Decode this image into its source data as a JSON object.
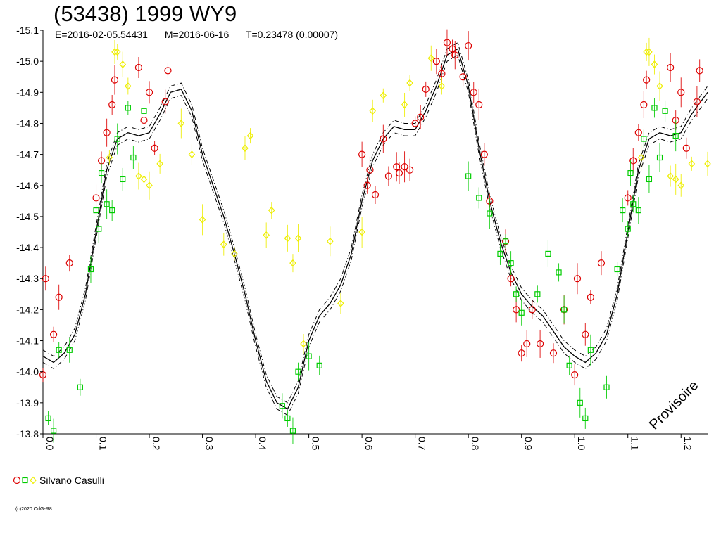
{
  "header": {
    "title": "(53438) 1999 WY9",
    "epoch": "E=2016-02-05.54431",
    "mid": "M=2016-06-16",
    "period": "T=0.23478 (0.00007)"
  },
  "legend": {
    "observer": "Silvano Casulli"
  },
  "watermark": "Provisoire",
  "copyright": "(c)2020 OdG-R8",
  "colors": {
    "red": "#dd0000",
    "green": "#00cc00",
    "yellow": "#eeee00",
    "curve": "#000000"
  },
  "chart_data": {
    "type": "scatter",
    "xlim": [
      0.0,
      1.25
    ],
    "ylim": [
      -15.1,
      -13.8
    ],
    "y_inverted": true,
    "x_tick_labels": [
      "0.0",
      "0.1",
      "0.2",
      "0.3",
      "0.4",
      "0.5",
      "0.6",
      "0.7",
      "0.8",
      "0.9",
      "1.0",
      "1.1",
      "1.2"
    ],
    "y_tick_labels": [
      "-15.1",
      "-15.0",
      "-14.9",
      "-14.8",
      "-14.7",
      "-14.6",
      "-14.5",
      "-14.4",
      "-14.3",
      "-14.2",
      "-14.1",
      "-14.0",
      "-13.9",
      "-13.8"
    ],
    "fit_curve": {
      "x": [
        0.0,
        0.02,
        0.04,
        0.06,
        0.08,
        0.1,
        0.12,
        0.14,
        0.16,
        0.18,
        0.2,
        0.22,
        0.24,
        0.26,
        0.28,
        0.3,
        0.32,
        0.34,
        0.36,
        0.38,
        0.4,
        0.42,
        0.44,
        0.46,
        0.48,
        0.5,
        0.52,
        0.54,
        0.56,
        0.58,
        0.6,
        0.62,
        0.64,
        0.66,
        0.68,
        0.7,
        0.72,
        0.74,
        0.76,
        0.78,
        0.8,
        0.82,
        0.84,
        0.86,
        0.88,
        0.9,
        0.92,
        0.94,
        0.96,
        0.98,
        1.0,
        1.02,
        1.04,
        1.06,
        1.08,
        1.1,
        1.12,
        1.14,
        1.16,
        1.18,
        1.2,
        1.22,
        1.25
      ],
      "y": [
        -14.05,
        -14.03,
        -14.06,
        -14.12,
        -14.25,
        -14.45,
        -14.65,
        -14.75,
        -14.77,
        -14.76,
        -14.77,
        -14.83,
        -14.9,
        -14.91,
        -14.84,
        -14.7,
        -14.6,
        -14.5,
        -14.38,
        -14.25,
        -14.1,
        -13.97,
        -13.9,
        -13.88,
        -13.95,
        -14.1,
        -14.18,
        -14.22,
        -14.28,
        -14.38,
        -14.55,
        -14.68,
        -14.75,
        -14.79,
        -14.78,
        -14.78,
        -14.84,
        -14.92,
        -15.02,
        -15.04,
        -14.92,
        -14.72,
        -14.55,
        -14.42,
        -14.32,
        -14.25,
        -14.21,
        -14.18,
        -14.13,
        -14.08,
        -14.05,
        -14.03,
        -14.06,
        -14.12,
        -14.25,
        -14.45,
        -14.65,
        -14.75,
        -14.77,
        -14.76,
        -14.77,
        -14.83,
        -14.9
      ],
      "band": 0.02
    },
    "series": [
      {
        "marker": "circle",
        "color": "red",
        "x": [
          0.0,
          0.005,
          0.02,
          0.03,
          0.05,
          0.1,
          0.11,
          0.12,
          0.13,
          0.135,
          0.18,
          0.19,
          0.2,
          0.21,
          0.23,
          0.235,
          0.6,
          0.61,
          0.615,
          0.625,
          0.64,
          0.65,
          0.665,
          0.67,
          0.68,
          0.69,
          0.7,
          0.71,
          0.72,
          0.74,
          0.75,
          0.76,
          0.77,
          0.775,
          0.79,
          0.8,
          0.81,
          0.82,
          0.83,
          0.84,
          0.87,
          0.88,
          0.89,
          0.9,
          0.91,
          0.92,
          0.935,
          0.96,
          0.98,
          1.0,
          1.005,
          1.02,
          1.03,
          1.05,
          1.1,
          1.11,
          1.12,
          1.13,
          1.135,
          1.18,
          1.19,
          1.2,
          1.21,
          1.23,
          1.235
        ],
        "y": [
          -13.99,
          -14.3,
          -14.12,
          -14.24,
          -14.35,
          -14.56,
          -14.68,
          -14.77,
          -14.86,
          -14.94,
          -14.98,
          -14.81,
          -14.9,
          -14.72,
          -14.87,
          -14.97,
          -14.7,
          -14.6,
          -14.65,
          -14.57,
          -14.75,
          -14.63,
          -14.66,
          -14.64,
          -14.66,
          -14.65,
          -14.8,
          -14.82,
          -14.91,
          -15.0,
          -14.96,
          -15.06,
          -15.04,
          -15.02,
          -14.95,
          -15.05,
          -14.9,
          -14.86,
          -14.7,
          -14.55,
          -14.42,
          -14.3,
          -14.2,
          -14.06,
          -14.09,
          -14.2,
          -14.09,
          -14.06,
          -14.2,
          -13.99,
          -14.3,
          -14.12,
          -14.24,
          -14.35,
          -14.56,
          -14.68,
          -14.77,
          -14.86,
          -14.94,
          -14.98,
          -14.81,
          -14.9,
          -14.72,
          -14.87,
          -14.97
        ]
      },
      {
        "marker": "square",
        "color": "green",
        "x": [
          0.01,
          0.02,
          0.03,
          0.05,
          0.07,
          0.09,
          0.1,
          0.105,
          0.11,
          0.12,
          0.13,
          0.14,
          0.15,
          0.16,
          0.17,
          0.19,
          0.45,
          0.46,
          0.47,
          0.48,
          0.5,
          0.52,
          0.8,
          0.82,
          0.84,
          0.86,
          0.87,
          0.88,
          0.89,
          0.9,
          0.93,
          0.95,
          0.97,
          0.98,
          0.99,
          1.01,
          1.02,
          1.03,
          1.06,
          1.08,
          1.09,
          1.1,
          1.105,
          1.11,
          1.12,
          1.13,
          1.14,
          1.15,
          1.16,
          1.17,
          1.19
        ],
        "y": [
          -13.85,
          -13.81,
          -14.07,
          -14.07,
          -13.95,
          -14.33,
          -14.52,
          -14.46,
          -14.64,
          -14.54,
          -14.52,
          -14.75,
          -14.62,
          -14.85,
          -14.69,
          -14.84,
          -13.89,
          -13.85,
          -13.81,
          -14.0,
          -14.05,
          -14.02,
          -14.63,
          -14.56,
          -14.51,
          -14.38,
          -14.42,
          -14.35,
          -14.25,
          -14.19,
          -14.25,
          -14.38,
          -14.32,
          -14.2,
          -14.02,
          -13.9,
          -13.85,
          -14.07,
          -13.95,
          -14.33,
          -14.52,
          -14.46,
          -14.64,
          -14.54,
          -14.52,
          -14.75,
          -14.62,
          -14.85,
          -14.69,
          -14.84,
          -14.76
        ]
      },
      {
        "marker": "diamond",
        "color": "yellow",
        "x": [
          0.125,
          0.135,
          0.14,
          0.15,
          0.16,
          0.18,
          0.19,
          0.2,
          0.22,
          0.26,
          0.28,
          0.3,
          0.34,
          0.36,
          0.38,
          0.39,
          0.42,
          0.43,
          0.46,
          0.47,
          0.48,
          0.49,
          0.54,
          0.56,
          0.6,
          0.62,
          0.64,
          0.68,
          0.69,
          0.73,
          0.75,
          1.125,
          1.135,
          1.14,
          1.15,
          1.16,
          1.18,
          1.19,
          1.2,
          1.22,
          1.25
        ],
        "y": [
          -14.69,
          -15.03,
          -15.03,
          -14.99,
          -14.92,
          -14.63,
          -14.62,
          -14.6,
          -14.67,
          -14.8,
          -14.7,
          -14.49,
          -14.41,
          -14.38,
          -14.72,
          -14.76,
          -14.44,
          -14.52,
          -14.43,
          -14.35,
          -14.43,
          -14.09,
          -14.42,
          -14.22,
          -14.45,
          -14.84,
          -14.89,
          -14.86,
          -14.93,
          -15.01,
          -14.92,
          -14.69,
          -15.03,
          -15.03,
          -14.99,
          -14.92,
          -14.63,
          -14.62,
          -14.6,
          -14.67,
          -14.67
        ]
      }
    ]
  }
}
